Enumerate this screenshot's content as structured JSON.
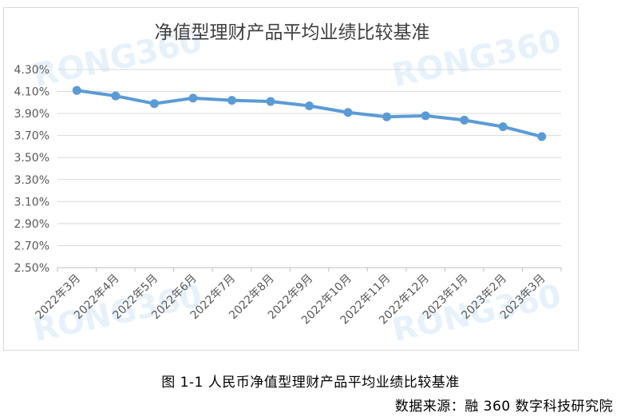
{
  "chart_data": {
    "type": "line",
    "title": "净值型理财产品平均业绩比较基准",
    "categories": [
      "2022年3月",
      "2022年4月",
      "2022年5月",
      "2022年6月",
      "2022年7月",
      "2022年8月",
      "2022年9月",
      "2022年10月",
      "2022年11月",
      "2022年12月",
      "2023年1月",
      "2023年2月",
      "2023年3月"
    ],
    "series": [
      {
        "values": [
          4.11,
          4.06,
          3.99,
          4.04,
          4.02,
          4.01,
          3.97,
          3.91,
          3.87,
          3.88,
          3.84,
          3.78,
          3.69
        ]
      }
    ],
    "y_ticks": [
      "2.50%",
      "2.70%",
      "2.90%",
      "3.10%",
      "3.30%",
      "3.50%",
      "3.70%",
      "3.90%",
      "4.10%",
      "4.30%"
    ],
    "ylim": [
      2.5,
      4.3
    ],
    "grid": true,
    "legend": "none",
    "line_color": "#5b9bd5",
    "watermark": "RONG360"
  },
  "caption": "图 1-1 人民币净值型理财产品平均业绩比较基准",
  "source": "数据来源：融 360 数字科技研究院"
}
